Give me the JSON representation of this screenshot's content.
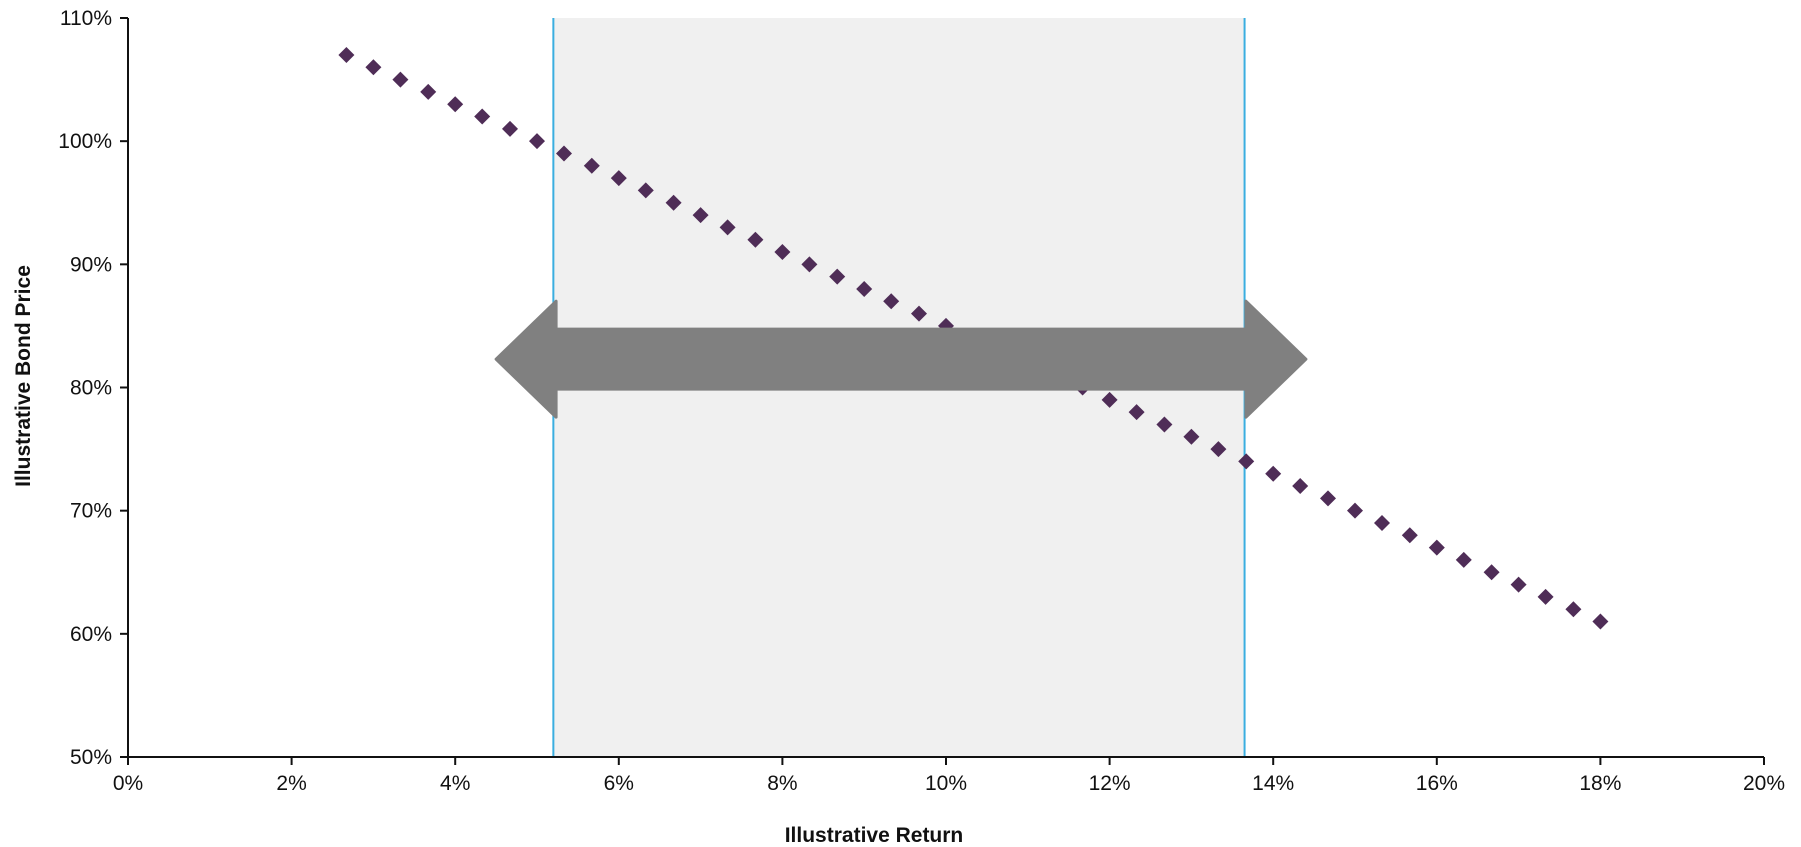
{
  "chart_data": {
    "type": "scatter",
    "xlabel": "Illustrative Return",
    "ylabel": "Illustrative Bond Price",
    "xlim": [
      0,
      20
    ],
    "ylim": [
      50,
      110
    ],
    "x_ticks": [
      "0%",
      "2%",
      "4%",
      "6%",
      "8%",
      "10%",
      "12%",
      "14%",
      "16%",
      "18%",
      "20%"
    ],
    "y_ticks": [
      "50%",
      "60%",
      "70%",
      "80%",
      "90%",
      "100%",
      "110%"
    ],
    "grid": false,
    "shaded_band": {
      "x_start": 5.2,
      "x_end": 13.65
    },
    "arrow": {
      "x_start": 4.5,
      "x_end": 14.4,
      "y": 82.3,
      "direction": "both"
    },
    "series": [
      {
        "marker": "diamond",
        "x": [
          2.67,
          3.0,
          3.33,
          3.67,
          4.0,
          4.33,
          4.67,
          5.0,
          5.33,
          5.67,
          6.0,
          6.33,
          6.67,
          7.0,
          7.33,
          7.67,
          8.0,
          8.33,
          8.67,
          9.0,
          9.33,
          9.67,
          10.0,
          10.33,
          10.67,
          11.0,
          11.33,
          11.67,
          12.0,
          12.33,
          12.67,
          13.0,
          13.33,
          13.67,
          14.0,
          14.33,
          14.67,
          15.0,
          15.33,
          15.67,
          16.0,
          16.33,
          16.67,
          17.0,
          17.33,
          17.67,
          18.0
        ],
        "y": [
          107,
          106,
          105,
          104,
          103,
          102,
          101,
          100,
          99,
          98,
          97,
          96,
          95,
          94,
          93,
          92,
          91,
          90,
          89,
          88,
          87,
          86,
          85,
          84,
          83,
          82,
          81,
          80,
          79,
          78,
          77,
          76,
          75,
          74,
          73,
          72,
          71,
          70,
          69,
          68,
          67,
          66,
          65,
          64,
          63,
          62,
          61
        ]
      }
    ]
  },
  "colors": {
    "marker": "#4f2d57",
    "band_fill": "#f0f0f0",
    "band_edge": "#3aaee0",
    "arrow": "#808080",
    "axis": "#111111"
  }
}
